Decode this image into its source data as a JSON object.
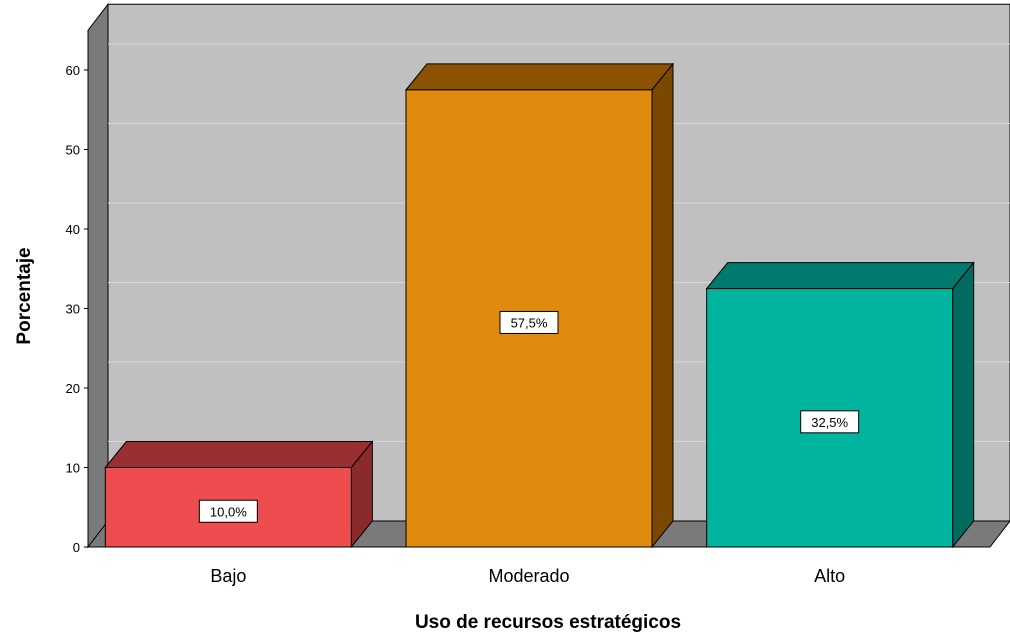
{
  "chart_data": {
    "type": "bar",
    "categories": [
      "Bajo",
      "Moderado",
      "Alto"
    ],
    "values": [
      10.0,
      57.5,
      32.5
    ],
    "data_labels": [
      "10,0%",
      "57,5%",
      "32,5%"
    ],
    "xlabel": "Uso de recursos estratégicos",
    "ylabel": "Porcentaje",
    "ylim": [
      0,
      65
    ],
    "yticks": [
      0,
      10,
      20,
      30,
      40,
      50,
      60
    ],
    "grid": true,
    "three_d": true,
    "colors": [
      {
        "front": "#ee4d4f",
        "top": "#992f32",
        "side": "#8a2a2c"
      },
      {
        "front": "#e08a10",
        "top": "#8c5203",
        "side": "#7a4800"
      },
      {
        "front": "#00b4a0",
        "top": "#007a6c",
        "side": "#006b5e"
      }
    ],
    "background": "#c0c0c0"
  }
}
